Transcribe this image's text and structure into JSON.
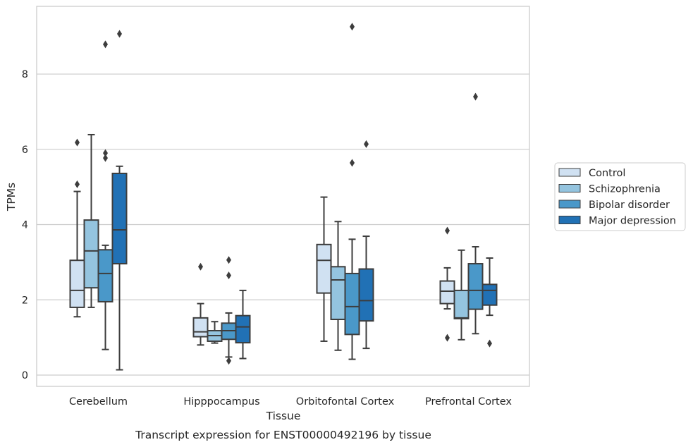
{
  "chart_data": {
    "type": "box",
    "xlabel": "Tissue",
    "ylabel": "TPMs",
    "caption": "Transcript expression for ENST00000492196 by tissue",
    "ylim": [
      -0.3,
      9.8
    ],
    "yticks": [
      0,
      2,
      4,
      6,
      8
    ],
    "grid": "horizontal",
    "legend_position": "right",
    "categories": [
      "Cerebellum",
      "Hipppocampus",
      "Orbitofontal Cortex",
      "Prefrontal Cortex"
    ],
    "series": [
      {
        "name": "Control",
        "color": "#d0e1f2",
        "boxes": [
          {
            "whislo": 1.55,
            "q1": 1.8,
            "med": 2.25,
            "q3": 3.05,
            "whishi": 4.88,
            "fliers": [
              5.07,
              6.18
            ]
          },
          {
            "whislo": 0.8,
            "q1": 1.02,
            "med": 1.15,
            "q3": 1.52,
            "whishi": 1.9,
            "fliers": [
              2.88
            ]
          },
          {
            "whislo": 0.9,
            "q1": 2.18,
            "med": 3.05,
            "q3": 3.47,
            "whishi": 4.73,
            "fliers": []
          },
          {
            "whislo": 1.76,
            "q1": 1.9,
            "med": 2.23,
            "q3": 2.5,
            "whishi": 2.85,
            "fliers": [
              0.99,
              3.84
            ]
          }
        ]
      },
      {
        "name": "Schizophrenia",
        "color": "#94c4df",
        "boxes": [
          {
            "whislo": 1.8,
            "q1": 2.32,
            "med": 3.3,
            "q3": 4.12,
            "whishi": 6.39,
            "fliers": []
          },
          {
            "whislo": 0.85,
            "q1": 0.9,
            "med": 1.05,
            "q3": 1.18,
            "whishi": 1.42,
            "fliers": []
          },
          {
            "whislo": 0.66,
            "q1": 1.48,
            "med": 2.53,
            "q3": 2.88,
            "whishi": 4.08,
            "fliers": []
          },
          {
            "whislo": 0.94,
            "q1": 1.5,
            "med": 1.52,
            "q3": 2.25,
            "whishi": 3.32,
            "fliers": []
          }
        ]
      },
      {
        "name": "Bipolar disorder",
        "color": "#4a98c9",
        "boxes": [
          {
            "whislo": 0.68,
            "q1": 1.95,
            "med": 2.7,
            "q3": 3.33,
            "whishi": 3.45,
            "fliers": [
              5.77,
              5.9,
              8.79
            ]
          },
          {
            "whislo": 0.48,
            "q1": 0.95,
            "med": 1.18,
            "q3": 1.38,
            "whishi": 1.65,
            "fliers": [
              0.38,
              2.65,
              3.06
            ]
          },
          {
            "whislo": 0.42,
            "q1": 1.08,
            "med": 1.82,
            "q3": 2.7,
            "whishi": 3.61,
            "fliers": [
              5.64,
              9.26
            ]
          },
          {
            "whislo": 1.1,
            "q1": 1.75,
            "med": 2.25,
            "q3": 2.96,
            "whishi": 3.41,
            "fliers": [
              7.4
            ]
          }
        ]
      },
      {
        "name": "Major depression",
        "color": "#2171b5",
        "boxes": [
          {
            "whislo": 0.14,
            "q1": 2.96,
            "med": 3.86,
            "q3": 5.36,
            "whishi": 5.55,
            "fliers": [
              9.07
            ]
          },
          {
            "whislo": 0.44,
            "q1": 0.86,
            "med": 1.28,
            "q3": 1.58,
            "whishi": 2.25,
            "fliers": []
          },
          {
            "whislo": 0.71,
            "q1": 1.44,
            "med": 1.98,
            "q3": 2.82,
            "whishi": 3.69,
            "fliers": [
              6.14
            ]
          },
          {
            "whislo": 1.59,
            "q1": 1.86,
            "med": 2.25,
            "q3": 2.41,
            "whishi": 3.11,
            "fliers": [
              0.84
            ]
          }
        ]
      }
    ]
  }
}
